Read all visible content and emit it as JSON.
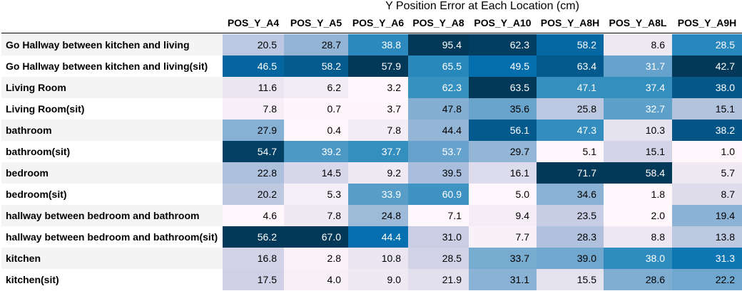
{
  "chart_data": {
    "type": "heatmap",
    "title": "Y Position Error at Each Location (cm)",
    "columns": [
      "POS_Y_A4",
      "POS_Y_A5",
      "POS_Y_A6",
      "POS_Y_A8",
      "POS_Y_A10",
      "POS_Y_A8H",
      "POS_Y_A8L",
      "POS_Y_A9H"
    ],
    "rows": [
      {
        "label": "Go Hallway between kitchen and living",
        "values": [
          20.5,
          28.7,
          38.8,
          95.4,
          62.3,
          58.2,
          8.6,
          28.5
        ]
      },
      {
        "label": "Go Hallway between kitchen and living(sit)",
        "values": [
          46.5,
          58.2,
          57.9,
          65.5,
          49.5,
          63.4,
          31.7,
          42.7
        ]
      },
      {
        "label": "Living Room",
        "values": [
          11.6,
          6.2,
          3.2,
          62.3,
          63.5,
          47.1,
          37.4,
          38.0
        ]
      },
      {
        "label": "Living Room(sit)",
        "values": [
          7.8,
          0.7,
          3.7,
          47.8,
          35.6,
          25.8,
          32.7,
          15.1
        ]
      },
      {
        "label": "bathroom",
        "values": [
          27.9,
          0.4,
          7.8,
          44.4,
          56.1,
          47.3,
          10.3,
          38.2
        ]
      },
      {
        "label": "bathroom(sit)",
        "values": [
          54.7,
          39.2,
          37.7,
          53.7,
          29.7,
          5.1,
          15.1,
          1.0
        ]
      },
      {
        "label": "bedroom",
        "values": [
          22.8,
          14.5,
          9.2,
          39.5,
          16.1,
          71.7,
          58.4,
          5.7
        ]
      },
      {
        "label": "bedroom(sit)",
        "values": [
          20.2,
          5.3,
          33.9,
          60.9,
          5.0,
          34.6,
          1.8,
          8.7
        ]
      },
      {
        "label": "hallway between bedroom and bathroom",
        "values": [
          4.6,
          7.8,
          24.8,
          7.1,
          9.4,
          23.5,
          2.0,
          19.4
        ]
      },
      {
        "label": "hallway between bedroom and bathroom(sit)",
        "values": [
          56.2,
          67.0,
          44.4,
          31.0,
          7.7,
          28.3,
          8.8,
          13.8
        ]
      },
      {
        "label": "kitchen",
        "values": [
          16.8,
          2.8,
          10.8,
          28.5,
          33.7,
          39.0,
          38.0,
          31.3
        ]
      },
      {
        "label": "kitchen(sit)",
        "values": [
          17.5,
          4.0,
          9.0,
          21.9,
          31.1,
          15.5,
          28.6,
          22.2
        ]
      }
    ],
    "colormap": "PuBu",
    "colorscale": "per-column",
    "color_scale_colors": [
      "#fff7fb",
      "#ece7f2",
      "#d0d1e6",
      "#a6bddb",
      "#74a9cf",
      "#3690c0",
      "#0570b0",
      "#045a8d",
      "#023858"
    ],
    "label_column_stripe_color": "#f4f4f4"
  }
}
